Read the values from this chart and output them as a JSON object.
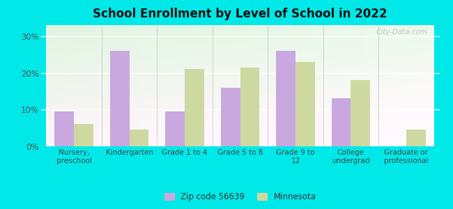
{
  "title": "School Enrollment by Level of School in 2022",
  "categories": [
    "Nursery,\npreschool",
    "Kindergarten",
    "Grade 1 to 4",
    "Grade 5 to 8",
    "Grade 9 to\n12",
    "College\nundergrad",
    "Graduate or\nprofessional"
  ],
  "zipcode_values": [
    9.5,
    26.0,
    9.5,
    16.0,
    26.0,
    13.0,
    0.0
  ],
  "minnesota_values": [
    6.0,
    4.5,
    21.0,
    21.5,
    23.0,
    18.0,
    4.5
  ],
  "zipcode_color": "#c9a8e0",
  "minnesota_color": "#cdd9a0",
  "background_outer": "#00e8e8",
  "yticks": [
    0,
    10,
    20,
    30
  ],
  "ylim": [
    0,
    33
  ],
  "legend_labels": [
    "Zip code 56639",
    "Minnesota"
  ],
  "watermark": "City-Data.com",
  "bar_width": 0.35
}
